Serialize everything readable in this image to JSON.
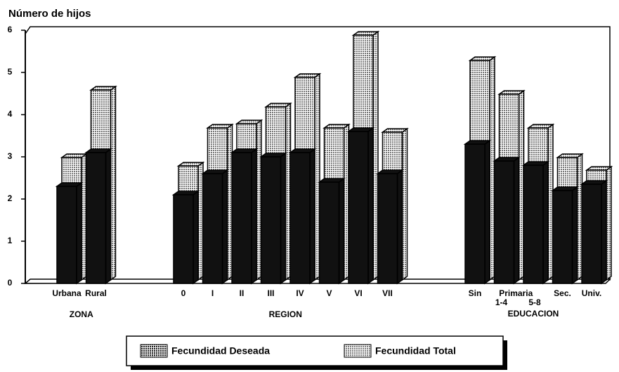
{
  "chart_data": {
    "type": "bar3d",
    "title": "Número de hijos",
    "categories": [
      "Urbana",
      "Rural",
      null,
      null,
      "0",
      "I",
      "II",
      "III",
      "IV",
      "V",
      "VI",
      "VII",
      null,
      null,
      "Sin",
      "1-4",
      "5-8",
      "Sec.",
      "Univ."
    ],
    "category_header": "Primaria",
    "group_labels": [
      "ZONA",
      "REGION",
      "EDUCACION"
    ],
    "series": [
      {
        "name": "Fecundidad Deseada",
        "color": "#111111",
        "values": [
          2.3,
          3.1,
          null,
          null,
          2.1,
          2.6,
          3.1,
          3.0,
          3.1,
          2.4,
          3.6,
          2.6,
          null,
          null,
          3.3,
          2.9,
          2.8,
          2.2,
          2.35
        ]
      },
      {
        "name": "Fecundidad Total",
        "color": "#777777",
        "values": [
          2.9,
          4.5,
          null,
          null,
          2.7,
          3.6,
          3.7,
          4.1,
          4.8,
          3.6,
          5.8,
          3.5,
          null,
          null,
          5.2,
          4.4,
          3.6,
          2.9,
          2.6
        ]
      }
    ],
    "ylim": [
      0,
      6
    ],
    "yticks": [
      0,
      1,
      2,
      3,
      4,
      5,
      6
    ]
  }
}
